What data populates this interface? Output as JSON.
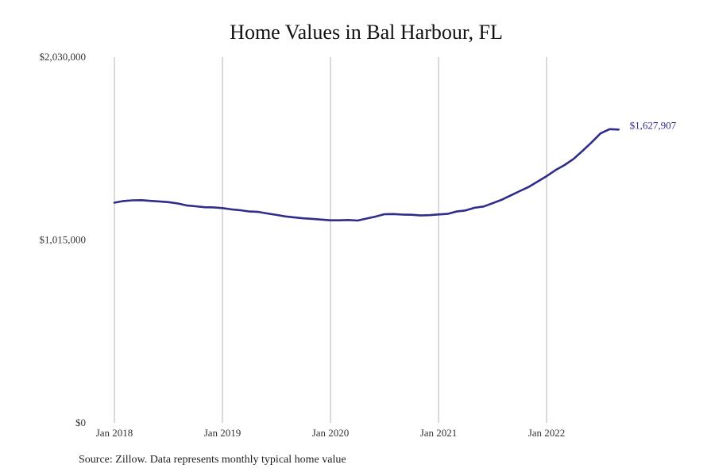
{
  "chart_data": {
    "type": "line",
    "title": "Home Values in Bal Harbour, FL",
    "xlabel": "",
    "ylabel": "",
    "ylim": [
      0,
      2030000
    ],
    "y_ticks": [
      {
        "value": 0,
        "label": "$0"
      },
      {
        "value": 1015000,
        "label": "$1,015,000"
      },
      {
        "value": 2030000,
        "label": "$2,030,000"
      }
    ],
    "x_ticks": [
      {
        "t": 0,
        "label": "Jan 2018"
      },
      {
        "t": 12,
        "label": "Jan 2019"
      },
      {
        "t": 24,
        "label": "Jan 2020"
      },
      {
        "t": 36,
        "label": "Jan 2021"
      },
      {
        "t": 48,
        "label": "Jan 2022"
      }
    ],
    "x_range": [
      0,
      56
    ],
    "grid": "vertical",
    "series": [
      {
        "name": "Typical home value",
        "color": "#2e2d8c",
        "x": [
          0,
          1,
          2,
          3,
          4,
          5,
          6,
          7,
          8,
          9,
          10,
          11,
          12,
          13,
          14,
          15,
          16,
          17,
          18,
          19,
          20,
          21,
          22,
          23,
          24,
          25,
          26,
          27,
          28,
          29,
          30,
          31,
          32,
          33,
          34,
          35,
          36,
          37,
          38,
          39,
          40,
          41,
          42,
          43,
          44,
          45,
          46,
          47,
          48,
          49,
          50,
          51,
          52,
          53,
          54,
          55,
          56
        ],
        "values": [
          1222000,
          1231000,
          1235000,
          1236000,
          1232000,
          1229000,
          1225000,
          1218000,
          1207000,
          1202000,
          1197000,
          1196000,
          1192000,
          1185000,
          1180000,
          1173000,
          1171000,
          1162000,
          1154000,
          1146000,
          1140000,
          1135000,
          1132000,
          1128000,
          1124000,
          1124000,
          1126000,
          1123000,
          1134000,
          1145000,
          1158000,
          1159000,
          1156000,
          1155000,
          1151000,
          1153000,
          1157000,
          1160000,
          1173000,
          1179000,
          1194000,
          1201000,
          1219000,
          1238000,
          1262000,
          1286000,
          1309000,
          1339000,
          1369000,
          1403000,
          1431000,
          1465000,
          1510000,
          1557000,
          1607000,
          1630000,
          1628000
        ],
        "end_label": "$1,627,907"
      }
    ]
  },
  "source_note": "Source: Zillow. Data represents monthly typical home value"
}
